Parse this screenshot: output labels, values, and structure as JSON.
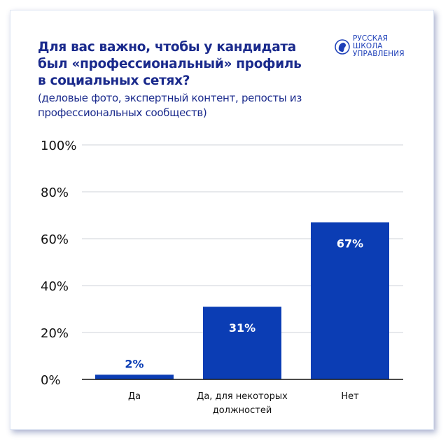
{
  "logo": {
    "lines": [
      "РУССКАЯ",
      "ШКОЛА",
      "УПРАВЛЕНИЯ"
    ]
  },
  "colors": {
    "bar": "#0b3db4",
    "title": "#1a2a8c",
    "grid": "#cfd3da",
    "label_on_bar": "#ffffff",
    "label_above_bar": "#0b3db4"
  },
  "chart_data": {
    "type": "bar",
    "title": "Для вас важно, чтобы у кандидата был «профессиональный» профиль в социальных сетях?",
    "subtitle": "(деловые фото, экспертный контент, репосты из профессиональных сообществ)",
    "categories": [
      [
        "Да"
      ],
      [
        "Да, для некоторых",
        "должностей"
      ],
      [
        "Нет"
      ]
    ],
    "values": [
      2,
      31,
      67
    ],
    "data_labels": [
      "2%",
      "31%",
      "67%"
    ],
    "ylim": [
      0,
      100
    ],
    "yticks": [
      "0%",
      "20%",
      "40%",
      "60%",
      "80%",
      "100%"
    ],
    "grid": true,
    "xlabel": "",
    "ylabel": ""
  }
}
